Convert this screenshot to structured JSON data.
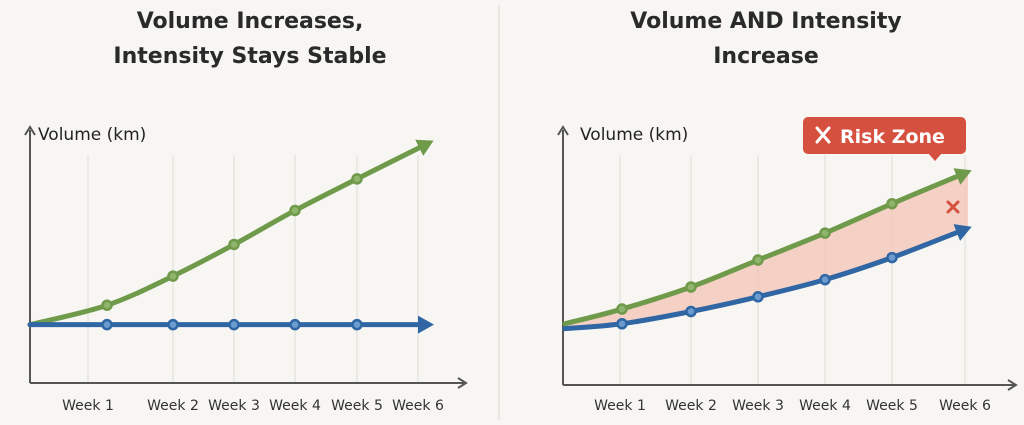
{
  "colors": {
    "background": "#f7f6f2",
    "volume": "#6e9a4a",
    "intensity": "#2f66a3",
    "risk": "#d6503f",
    "risk_fill": "#f4c3b6",
    "axis": "#555555"
  },
  "chart_data": [
    {
      "type": "line",
      "title_lines": [
        "Volume Increases,",
        "Intensity Stays Stable"
      ],
      "ylabel": "Volume (km)",
      "xlabel": "",
      "categories": [
        "Week 1",
        "Week 2",
        "Week 3",
        "Week 4",
        "Week 5",
        "Week 6"
      ],
      "ylim": [
        0,
        100
      ],
      "y_units": "relative (no numeric ticks shown)",
      "grid": "vertical",
      "series": [
        {
          "name": "volume",
          "start": 24,
          "values": [
            32,
            44,
            57,
            71,
            84,
            99
          ],
          "markers_through_week": 5
        },
        {
          "name": "intensity",
          "start": 24,
          "values": [
            24,
            24,
            24,
            24,
            24,
            24
          ],
          "markers_through_week": 5
        }
      ]
    },
    {
      "type": "line",
      "title_lines": [
        "Volume AND Intensity",
        "Increase"
      ],
      "ylabel": "Volume (km)",
      "xlabel": "",
      "categories": [
        "Week 1",
        "Week 2",
        "Week 3",
        "Week 4",
        "Week 5",
        "Week 6"
      ],
      "ylim": [
        0,
        100
      ],
      "y_units": "relative (no numeric ticks shown)",
      "grid": "vertical",
      "series": [
        {
          "name": "volume",
          "start": 25,
          "values": [
            31,
            40,
            51,
            62,
            74,
            87
          ],
          "markers_through_week": 5
        },
        {
          "name": "intensity",
          "start": 23,
          "values": [
            25,
            30,
            36,
            43,
            52,
            64
          ],
          "markers_through_week": 5
        }
      ],
      "annotation": {
        "label": "Risk Zone",
        "icon": "x-icon",
        "shaded_between": [
          "volume",
          "intensity"
        ]
      }
    }
  ]
}
